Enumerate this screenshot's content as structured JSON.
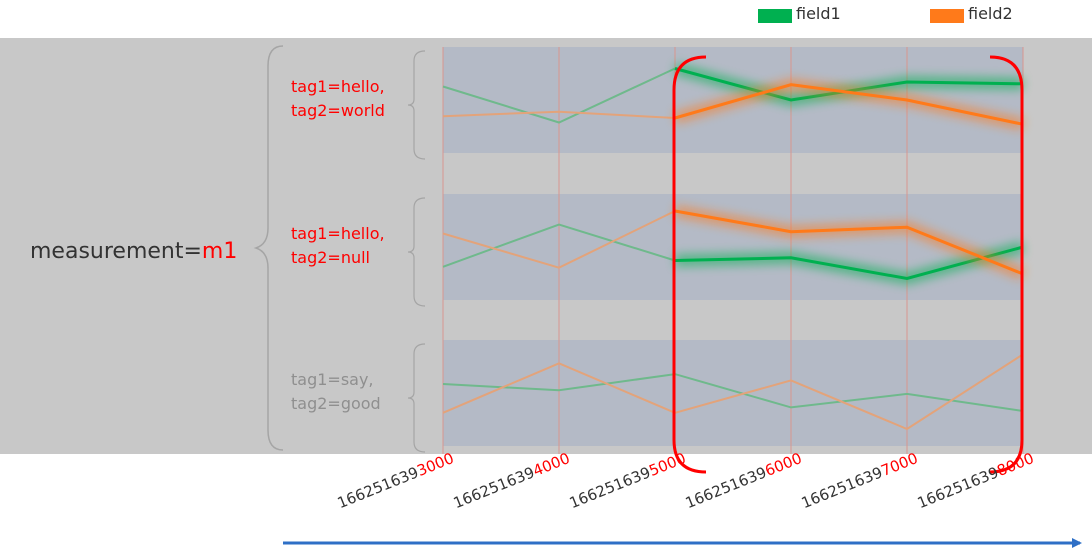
{
  "legend": [
    {
      "name": "field1",
      "color": "#00b050"
    },
    {
      "name": "field2",
      "color": "#ff7a1a"
    }
  ],
  "measurement": {
    "prefix": "measurement=",
    "value": "m1"
  },
  "series_groups": [
    {
      "tag1": "tag1=hello,",
      "tag2": "tag2=world",
      "highlighted": true,
      "field1": [
        0.35,
        0.75,
        0.15,
        0.5,
        0.3,
        0.32
      ],
      "field2": [
        0.68,
        0.63,
        0.7,
        0.33,
        0.5,
        0.77
      ]
    },
    {
      "tag1": "tag1=hello,",
      "tag2": "tag2=null",
      "highlighted": true,
      "field1": [
        0.72,
        0.25,
        0.65,
        0.62,
        0.85,
        0.5
      ],
      "field2": [
        0.35,
        0.73,
        0.1,
        0.33,
        0.28,
        0.8
      ]
    },
    {
      "tag1": "tag1=say,",
      "tag2": "tag2=good",
      "highlighted": false,
      "field1": [
        0.4,
        0.47,
        0.29,
        0.66,
        0.51,
        0.7
      ],
      "field2": [
        0.72,
        0.17,
        0.72,
        0.36,
        0.9,
        0.07
      ]
    }
  ],
  "timestamps": [
    {
      "base": "166251639",
      "suffix": "3000"
    },
    {
      "base": "166251639",
      "suffix": "4000"
    },
    {
      "base": "166251639",
      "suffix": "5000"
    },
    {
      "base": "166251639",
      "suffix": "6000"
    },
    {
      "base": "166251639",
      "suffix": "7000"
    },
    {
      "base": "166251639",
      "suffix": "8000"
    }
  ],
  "highlight_start_index": 2,
  "colors": {
    "panel": "#c8c8c8",
    "band": "#b4bac6",
    "red": "#ff0000",
    "arrow": "#2e6fc6",
    "muted_text": "#8f8f8f",
    "dark_text": "#333333"
  }
}
